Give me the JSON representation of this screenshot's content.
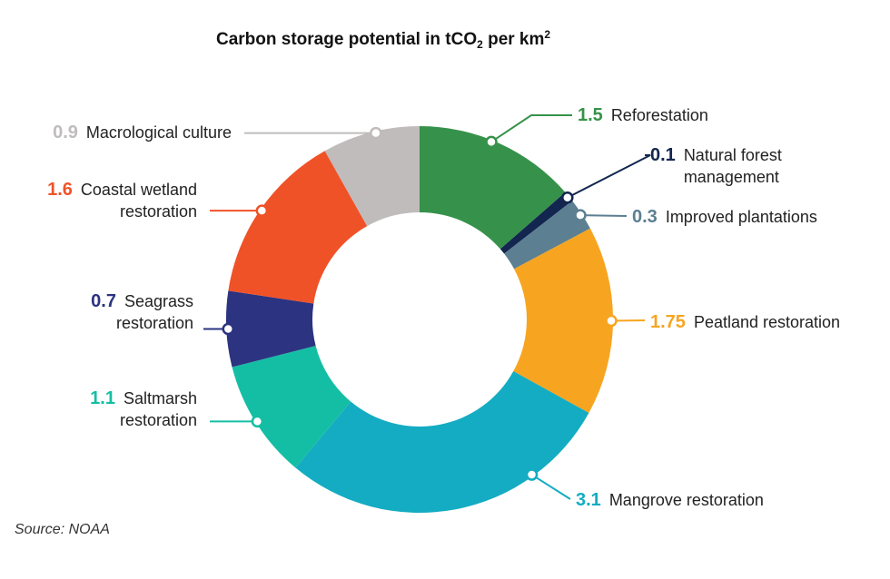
{
  "title": {
    "main": "Carbon storage potential in tCO",
    "sub": "2",
    "mid": " per km",
    "sup": "2"
  },
  "source": "Source: NOAA",
  "chart_data": {
    "type": "pie",
    "title": "Carbon storage potential in tCO2 per km2",
    "variant": "donut",
    "slices": [
      {
        "value": 1.5,
        "label_lines": [
          "Reforestation"
        ],
        "color": "#36924a"
      },
      {
        "value": 0.1,
        "label_lines": [
          "Natural forest",
          "management"
        ],
        "color": "#12264f"
      },
      {
        "value": 0.3,
        "label_lines": [
          "Improved plantations"
        ],
        "color": "#5c7f91"
      },
      {
        "value": 1.75,
        "label_lines": [
          "Peatland restoration"
        ],
        "color": "#f7a520"
      },
      {
        "value": 3.1,
        "label_lines": [
          "Mangrove restoration"
        ],
        "color": "#14acc2"
      },
      {
        "value": 1.1,
        "label_lines": [
          "Saltmarsh",
          "restoration"
        ],
        "color": "#14bea4"
      },
      {
        "value": 0.7,
        "label_lines": [
          "Seagrass",
          "restoration"
        ],
        "color": "#2c3380"
      },
      {
        "value": 1.6,
        "label_lines": [
          "Coastal wetland",
          "restoration"
        ],
        "color": "#f05228"
      },
      {
        "value": 0.9,
        "label_lines": [
          "Macrological culture"
        ],
        "color": "#c0bcbc"
      }
    ]
  }
}
